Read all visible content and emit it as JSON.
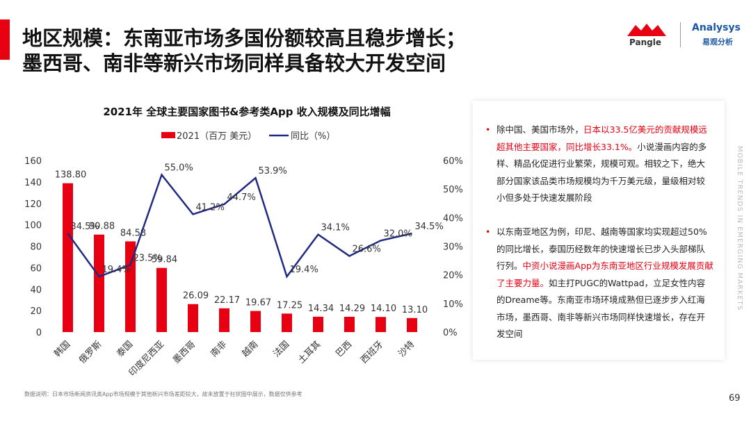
{
  "header": {
    "title_lines": [
      "地区规模：东南亚市场多国份额较高且稳步增长；",
      "墨西哥、南非等新兴市场同样具备较大开发空间"
    ],
    "logo_left": "Pangle",
    "logo_right": "Analysys",
    "logo_right_sub": "易观分析"
  },
  "side_text": "MOBILE TRENDS IN EMERGING MARKETS",
  "chart_data": {
    "type": "bar",
    "title": "2021年 全球主要国家图书&参考类App 收入规模及同比增幅",
    "categories": [
      "韩国",
      "俄罗斯",
      "泰国",
      "印度尼西亚",
      "墨西哥",
      "南非",
      "越南",
      "法国",
      "土耳其",
      "巴西",
      "西班牙",
      "沙特"
    ],
    "series": [
      {
        "name": "2021（百万 美元）",
        "type": "bar",
        "color": "#e60012",
        "values": [
          138.8,
          90.88,
          84.58,
          59.84,
          26.09,
          22.17,
          19.67,
          17.25,
          14.34,
          14.29,
          14.1,
          13.1
        ],
        "value_labels": [
          "138.80",
          "90.88",
          "84.58",
          "59.84",
          "26.09",
          "22.17",
          "19.67",
          "17.25",
          "14.34",
          "14.29",
          "14.10",
          "13.10"
        ]
      },
      {
        "name": "同比（%）",
        "type": "line",
        "axis": "y2",
        "color": "#1f2a80",
        "values": [
          34.5,
          19.4,
          23.5,
          55.0,
          41.2,
          44.7,
          53.9,
          19.4,
          34.1,
          26.6,
          32.0,
          34.5
        ],
        "value_labels": [
          "34.5%",
          "19.4%",
          "23.5%",
          "55.0%",
          "41.2%",
          "44.7%",
          "53.9%",
          "19.4%",
          "34.1%",
          "26.6%",
          "32.0%",
          "34.5%"
        ]
      }
    ],
    "ylim": [
      0,
      160
    ],
    "yticks": [
      0,
      20,
      40,
      60,
      80,
      100,
      120,
      140,
      160
    ],
    "y2lim": [
      0,
      60
    ],
    "y2ticks": [
      {
        "value": 0,
        "label": "0%"
      },
      {
        "value": 10,
        "label": "10%"
      },
      {
        "value": 20,
        "label": "20%"
      },
      {
        "value": 30,
        "label": "30%"
      },
      {
        "value": 40,
        "label": "40%"
      },
      {
        "value": 50,
        "label": "50%"
      },
      {
        "value": 60,
        "label": "60%"
      }
    ]
  },
  "text": {
    "bullets": [
      [
        "除中国、美国市场外，",
        {
          "text": "日本以33.5亿美元的贡献规模远超其他主要国家，同比增长33.1%。",
          "color": "#e60012"
        },
        "小说漫画内容的多样、精品化促进行业繁荣，规模可观。相较之下，绝大部分国家该品类市场规模均为千万美元级，量级相对较小但多处于快速发展阶段"
      ],
      [
        "以东南亚地区为例，印尼、越南等国家均实现超过50%的同比增长，泰国历经数年的快速增长已步入头部梯队行列。",
        {
          "text": "中资小说漫画App为东南亚地区行业规模发展贡献了主要力量。",
          "color": "#e60012"
        },
        "如主打PUGC的Wattpad，立足女性内容的Dreame等。东南亚市场环境成熟但已逐步步入红海市场，墨西哥、南非等新兴市场同样快速增长，存在开发空间"
      ]
    ]
  },
  "footnote": "数据说明：日本市场新闻资讯类App市场规模于其他新兴市场差距较大，故未放置于柱状图中展示，数据仅供参考",
  "page_number": "69"
}
